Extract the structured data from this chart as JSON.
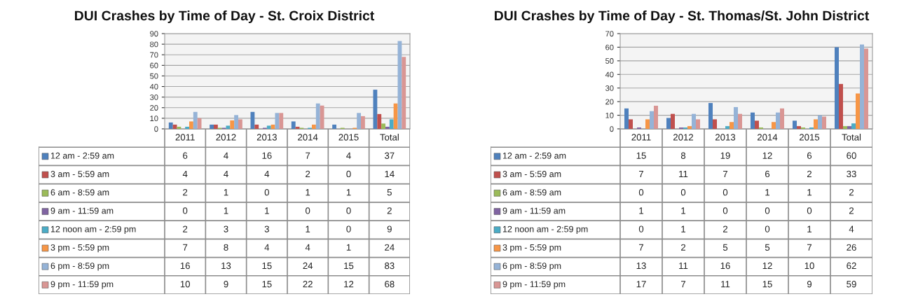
{
  "chart_data": [
    {
      "type": "bar",
      "title": "DUI Crashes by Time of Day - St. Croix District",
      "categories": [
        "2011",
        "2012",
        "2013",
        "2014",
        "2015",
        "Total"
      ],
      "series": [
        {
          "name": "12 am - 2:59 am",
          "color": "#4f81bd",
          "values": [
            6,
            4,
            16,
            7,
            4,
            37
          ]
        },
        {
          "name": "3 am - 5:59 am",
          "color": "#c0504d",
          "values": [
            4,
            4,
            4,
            2,
            0,
            14
          ]
        },
        {
          "name": "6 am - 8:59 am",
          "color": "#9bbb59",
          "values": [
            2,
            1,
            0,
            1,
            1,
            5
          ]
        },
        {
          "name": "9 am - 11:59 am",
          "color": "#8064a2",
          "values": [
            0,
            1,
            1,
            0,
            0,
            2
          ]
        },
        {
          "name": "12 noon am - 2:59 pm",
          "color": "#4bacc6",
          "values": [
            2,
            3,
            3,
            1,
            0,
            9
          ]
        },
        {
          "name": "3 pm - 5:59 pm",
          "color": "#f79646",
          "values": [
            7,
            8,
            4,
            4,
            1,
            24
          ]
        },
        {
          "name": "6 pm - 8:59 pm",
          "color": "#95b3d7",
          "values": [
            16,
            13,
            15,
            24,
            15,
            83
          ]
        },
        {
          "name": "9 pm - 11:59 pm",
          "color": "#d99694",
          "values": [
            10,
            9,
            15,
            22,
            12,
            68
          ]
        }
      ],
      "ylim": [
        0,
        90
      ],
      "yticks": [
        0,
        10,
        20,
        30,
        40,
        50,
        60,
        70,
        80,
        90
      ],
      "grid": "y",
      "legend": "bottom left",
      "data_labels": true
    },
    {
      "type": "bar",
      "title": "DUI Crashes by Time of Day - St. Thomas/St. John District",
      "categories": [
        "2011",
        "2012",
        "2013",
        "2014",
        "2015",
        "Total"
      ],
      "series": [
        {
          "name": "12 am - 2:59 am",
          "color": "#4f81bd",
          "values": [
            15,
            8,
            19,
            12,
            6,
            60
          ]
        },
        {
          "name": "3 am - 5:59 am",
          "color": "#c0504d",
          "values": [
            7,
            11,
            7,
            6,
            2,
            33
          ]
        },
        {
          "name": "6 am - 8:59 am",
          "color": "#9bbb59",
          "values": [
            0,
            0,
            0,
            1,
            1,
            2
          ]
        },
        {
          "name": "9 am - 11:59 am",
          "color": "#8064a2",
          "values": [
            1,
            1,
            0,
            0,
            0,
            2
          ]
        },
        {
          "name": "12 noon am - 2:59 pm",
          "color": "#4bacc6",
          "values": [
            0,
            1,
            2,
            0,
            1,
            4
          ]
        },
        {
          "name": "3 pm - 5:59 pm",
          "color": "#f79646",
          "values": [
            7,
            2,
            5,
            5,
            7,
            26
          ]
        },
        {
          "name": "6 pm - 8:59 pm",
          "color": "#95b3d7",
          "values": [
            13,
            11,
            16,
            12,
            10,
            62
          ]
        },
        {
          "name": "9 pm - 11:59 pm",
          "color": "#d99694",
          "values": [
            17,
            7,
            11,
            15,
            9,
            59
          ]
        }
      ],
      "ylim": [
        0,
        70
      ],
      "yticks": [
        0,
        10,
        20,
        30,
        40,
        50,
        60,
        70
      ],
      "grid": "y",
      "legend": "bottom left",
      "data_labels": true
    }
  ]
}
